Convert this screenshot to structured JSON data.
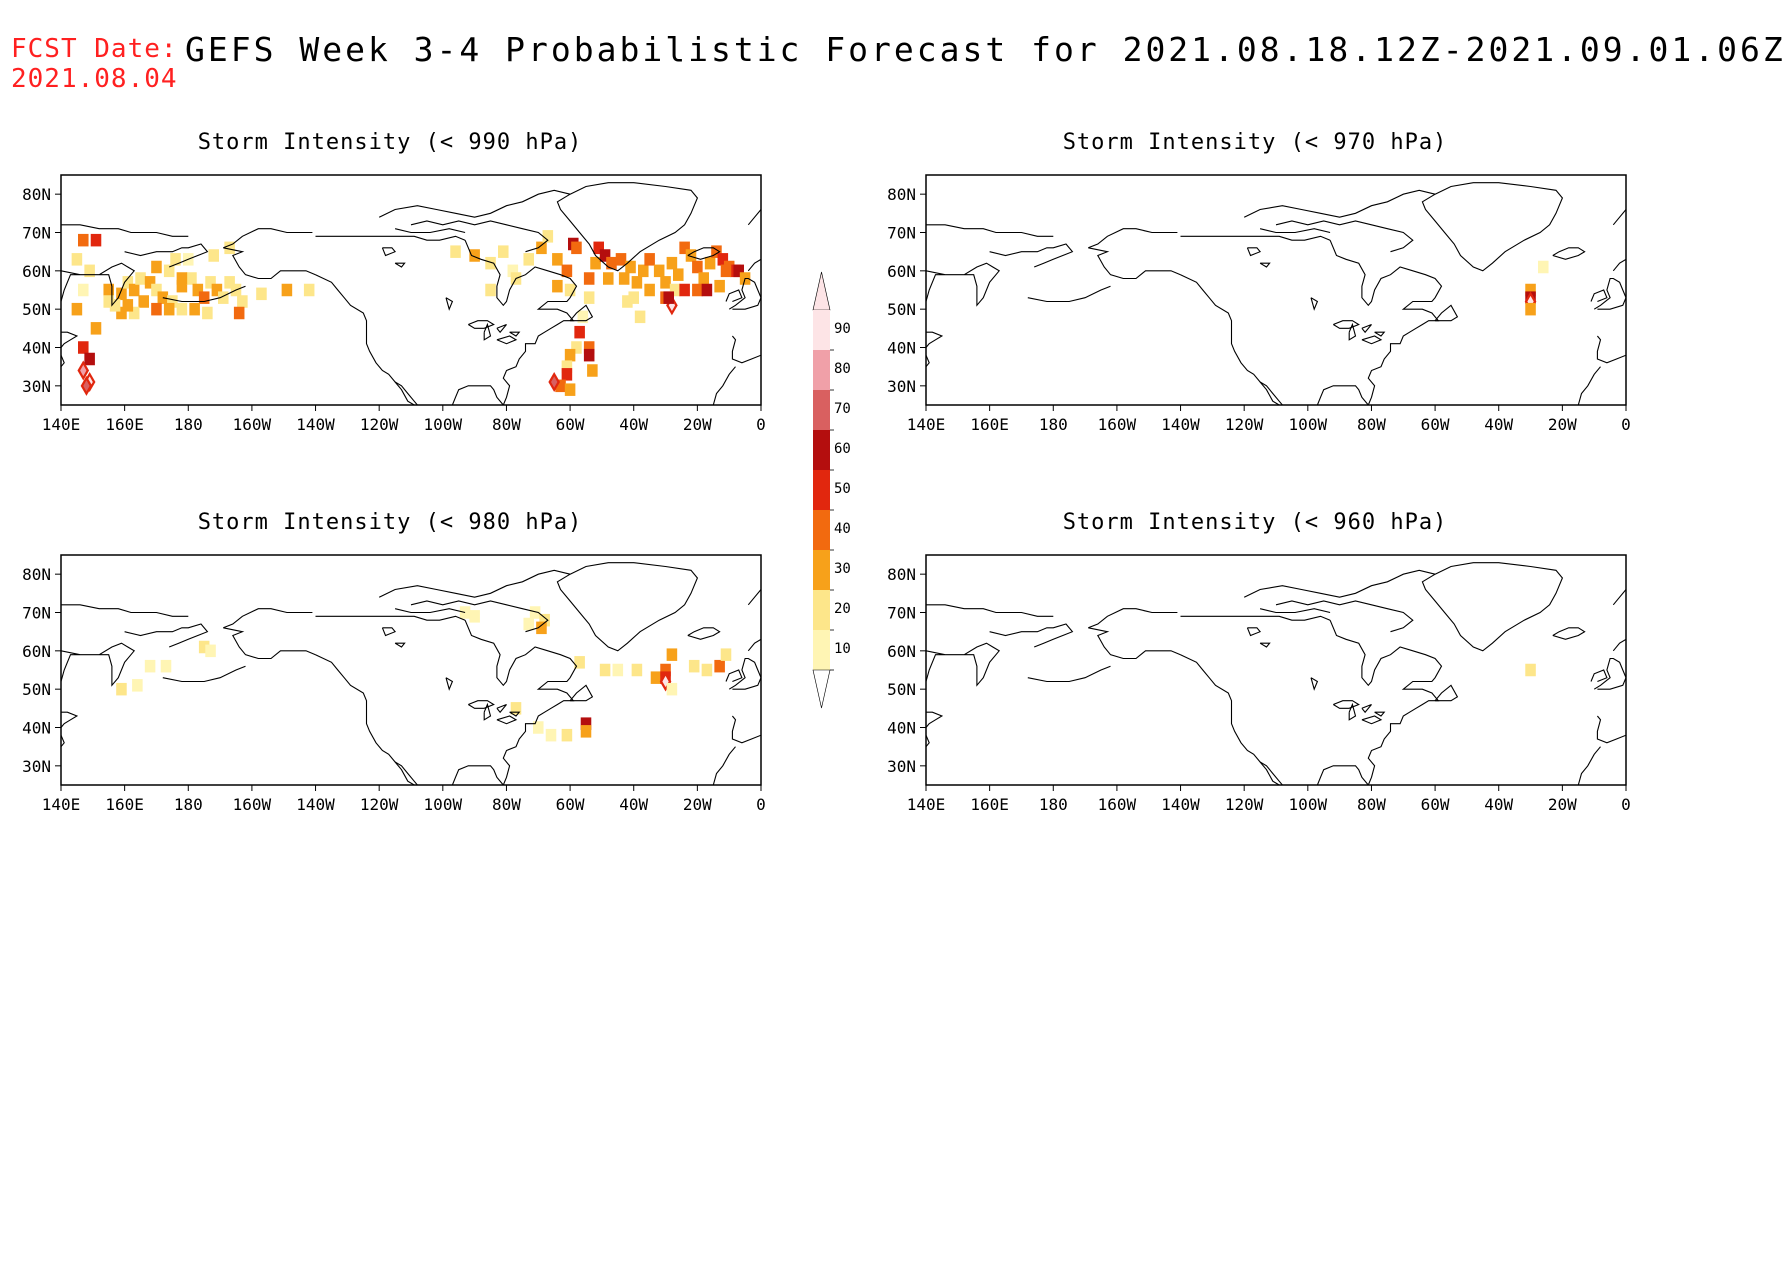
{
  "header": {
    "fcst_label": "FCST Date:",
    "fcst_date": "2021.08.04",
    "title": "GEFS Week 3-4 Probabilistic Forecast for 2021.08.18.12Z-2021.09.01.06Z"
  },
  "lon_ticks": [
    "140E",
    "160E",
    "180",
    "160W",
    "140W",
    "120W",
    "100W",
    "80W",
    "60W",
    "40W",
    "20W",
    "0"
  ],
  "lat_ticks": [
    "80N",
    "70N",
    "60N",
    "50N",
    "40N",
    "30N"
  ],
  "colors": {
    "10": "#fff5b4",
    "20": "#fde68a",
    "30": "#f7a11a",
    "40": "#f26a0f",
    "50": "#e1270e",
    "60": "#b40e0e",
    "70": "#d96060",
    "80": "#f0a0a8",
    "90": "#fde4e6"
  },
  "colorbar": {
    "labels": [
      "90",
      "80",
      "70",
      "60",
      "50",
      "40",
      "30",
      "20",
      "10"
    ],
    "levels": [
      90,
      80,
      70,
      60,
      50,
      40,
      30,
      20,
      10
    ]
  },
  "panels": [
    {
      "id": "p990",
      "title": "Storm Intensity (< 990 hPa)",
      "cells": [
        [
          147,
          68,
          40
        ],
        [
          151,
          68,
          50
        ],
        [
          145,
          63,
          20
        ],
        [
          149,
          60,
          20
        ],
        [
          147,
          55,
          10
        ],
        [
          145,
          50,
          30
        ],
        [
          151,
          45,
          30
        ],
        [
          147,
          40,
          50
        ],
        [
          149,
          37,
          60
        ],
        [
          147,
          34,
          80
        ],
        [
          149,
          31,
          90
        ],
        [
          148,
          30,
          70
        ],
        [
          155,
          55,
          30
        ],
        [
          155,
          52,
          20
        ],
        [
          159,
          54,
          30
        ],
        [
          161,
          57,
          20
        ],
        [
          163,
          55,
          30
        ],
        [
          165,
          58,
          20
        ],
        [
          168,
          57,
          30
        ],
        [
          170,
          55,
          20
        ],
        [
          172,
          53,
          30
        ],
        [
          175,
          52,
          20
        ],
        [
          178,
          56,
          30
        ],
        [
          181,
          58,
          20
        ],
        [
          183,
          55,
          30
        ],
        [
          185,
          53,
          40
        ],
        [
          187,
          57,
          20
        ],
        [
          189,
          55,
          30
        ],
        [
          191,
          53,
          20
        ],
        [
          193,
          57,
          20
        ],
        [
          195,
          55,
          20
        ],
        [
          197,
          52,
          20
        ],
        [
          166,
          52,
          30
        ],
        [
          170,
          50,
          40
        ],
        [
          174,
          50,
          30
        ],
        [
          178,
          50,
          20
        ],
        [
          182,
          50,
          30
        ],
        [
          186,
          49,
          20
        ],
        [
          159,
          49,
          30
        ],
        [
          163,
          49,
          20
        ],
        [
          157,
          51,
          20
        ],
        [
          161,
          51,
          30
        ],
        [
          170,
          61,
          30
        ],
        [
          174,
          60,
          20
        ],
        [
          178,
          58,
          30
        ],
        [
          188,
          64,
          20
        ],
        [
          193,
          66,
          20
        ],
        [
          176,
          63,
          20
        ],
        [
          180,
          63,
          10
        ],
        [
          196,
          49,
          40
        ],
        [
          203,
          54,
          20
        ],
        [
          211,
          55,
          30
        ],
        [
          218,
          55,
          20
        ],
        [
          264,
          65,
          20
        ],
        [
          270,
          64,
          30
        ],
        [
          275,
          62,
          20
        ],
        [
          279,
          65,
          20
        ],
        [
          282,
          60,
          10
        ],
        [
          275,
          55,
          20
        ],
        [
          283,
          58,
          20
        ],
        [
          287,
          63,
          20
        ],
        [
          291,
          66,
          30
        ],
        [
          293,
          69,
          20
        ],
        [
          296,
          63,
          30
        ],
        [
          299,
          60,
          40
        ],
        [
          301,
          67,
          60
        ],
        [
          302,
          66,
          40
        ],
        [
          296,
          56,
          30
        ],
        [
          300,
          55,
          20
        ],
        [
          306,
          58,
          40
        ],
        [
          308,
          62,
          30
        ],
        [
          309,
          66,
          50
        ],
        [
          311,
          64,
          60
        ],
        [
          313,
          62,
          40
        ],
        [
          312,
          58,
          30
        ],
        [
          306,
          53,
          20
        ],
        [
          304,
          48,
          10
        ],
        [
          302,
          40,
          20
        ],
        [
          300,
          38,
          30
        ],
        [
          299,
          35,
          20
        ],
        [
          306,
          40,
          40
        ],
        [
          303,
          44,
          50
        ],
        [
          306,
          38,
          60
        ],
        [
          299,
          33,
          50
        ],
        [
          297,
          30,
          40
        ],
        [
          295,
          31,
          70
        ],
        [
          300,
          29,
          30
        ],
        [
          307,
          34,
          30
        ],
        [
          316,
          63,
          40
        ],
        [
          319,
          61,
          30
        ],
        [
          317,
          58,
          30
        ],
        [
          321,
          57,
          30
        ],
        [
          323,
          60,
          30
        ],
        [
          325,
          63,
          40
        ],
        [
          328,
          60,
          30
        ],
        [
          330,
          57,
          30
        ],
        [
          332,
          62,
          30
        ],
        [
          334,
          59,
          30
        ],
        [
          336,
          66,
          40
        ],
        [
          338,
          64,
          30
        ],
        [
          340,
          61,
          40
        ],
        [
          342,
          58,
          30
        ],
        [
          344,
          62,
          30
        ],
        [
          346,
          65,
          40
        ],
        [
          348,
          63,
          50
        ],
        [
          350,
          61,
          40
        ],
        [
          352,
          60,
          50
        ],
        [
          353,
          60,
          60
        ],
        [
          355,
          58,
          30
        ],
        [
          325,
          55,
          30
        ],
        [
          330,
          53,
          40
        ],
        [
          333,
          55,
          20
        ],
        [
          336,
          55,
          50
        ],
        [
          340,
          55,
          40
        ],
        [
          343,
          55,
          60
        ],
        [
          347,
          56,
          30
        ],
        [
          349,
          60,
          40
        ],
        [
          332,
          51,
          90
        ],
        [
          331,
          53,
          60
        ],
        [
          320,
          53,
          20
        ],
        [
          322,
          48,
          20
        ],
        [
          318,
          52,
          20
        ]
      ]
    },
    {
      "id": "p970",
      "title": "Storm Intensity (< 970 hPa)",
      "cells": [
        [
          330,
          55,
          30
        ],
        [
          330,
          53,
          60
        ],
        [
          330,
          52,
          90
        ],
        [
          330,
          50,
          30
        ],
        [
          334,
          61,
          10
        ]
      ]
    },
    {
      "id": "p980",
      "title": "Storm Intensity (< 980 hPa)",
      "cells": [
        [
          159,
          50,
          20
        ],
        [
          164,
          51,
          10
        ],
        [
          173,
          56,
          10
        ],
        [
          168,
          56,
          10
        ],
        [
          185,
          61,
          20
        ],
        [
          187,
          60,
          10
        ],
        [
          267,
          70,
          10
        ],
        [
          270,
          69,
          10
        ],
        [
          289,
          70,
          10
        ],
        [
          292,
          68,
          20
        ],
        [
          291,
          66,
          30
        ],
        [
          287,
          67,
          10
        ],
        [
          283,
          45,
          20
        ],
        [
          290,
          40,
          10
        ],
        [
          294,
          38,
          10
        ],
        [
          299,
          38,
          20
        ],
        [
          305,
          41,
          60
        ],
        [
          305,
          39,
          30
        ],
        [
          303,
          57,
          20
        ],
        [
          311,
          55,
          20
        ],
        [
          315,
          55,
          10
        ],
        [
          321,
          55,
          20
        ],
        [
          327,
          53,
          30
        ],
        [
          330,
          55,
          40
        ],
        [
          330,
          53,
          50
        ],
        [
          330,
          52,
          90
        ],
        [
          332,
          59,
          30
        ],
        [
          339,
          56,
          20
        ],
        [
          343,
          55,
          20
        ],
        [
          347,
          56,
          40
        ],
        [
          349,
          59,
          20
        ],
        [
          332,
          50,
          10
        ]
      ]
    },
    {
      "id": "p960",
      "title": "Storm Intensity (< 960 hPa)",
      "cells": [
        [
          330,
          55,
          20
        ]
      ]
    }
  ]
}
